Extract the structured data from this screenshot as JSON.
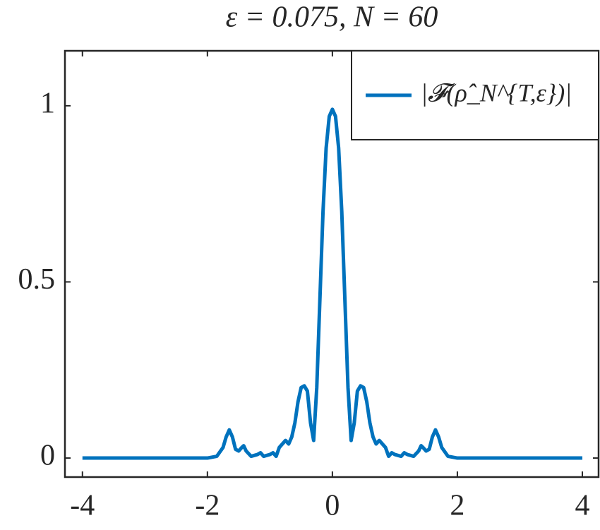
{
  "chart_data": {
    "type": "line",
    "title": "ε = 0.075, N = 60",
    "x": [
      -4,
      -2,
      -1.85,
      -1.75,
      -1.7,
      -1.65,
      -1.6,
      -1.55,
      -1.5,
      -1.45,
      -1.42,
      -1.38,
      -1.3,
      -1.2,
      -1.15,
      -1.1,
      -1.0,
      -0.95,
      -0.9,
      -0.85,
      -0.8,
      -0.75,
      -0.7,
      -0.65,
      -0.6,
      -0.55,
      -0.5,
      -0.45,
      -0.4,
      -0.35,
      -0.3,
      -0.25,
      -0.2,
      -0.15,
      -0.1,
      -0.05,
      0,
      0.05,
      0.1,
      0.15,
      0.2,
      0.25,
      0.3,
      0.35,
      0.4,
      0.45,
      0.5,
      0.55,
      0.6,
      0.65,
      0.7,
      0.75,
      0.8,
      0.85,
      0.9,
      0.95,
      1.0,
      1.1,
      1.15,
      1.2,
      1.3,
      1.38,
      1.42,
      1.45,
      1.5,
      1.55,
      1.6,
      1.65,
      1.7,
      1.75,
      1.85,
      2,
      4
    ],
    "series": [
      {
        "name": "|𝓕(ρ̂_N^{T,ε})|",
        "color": "#0072bd",
        "values": [
          0,
          0,
          0.005,
          0.03,
          0.06,
          0.08,
          0.06,
          0.025,
          0.02,
          0.03,
          0.035,
          0.02,
          0.005,
          0.01,
          0.015,
          0.005,
          0.01,
          0.015,
          0.005,
          0.03,
          0.04,
          0.05,
          0.04,
          0.06,
          0.1,
          0.16,
          0.2,
          0.205,
          0.19,
          0.1,
          0.05,
          0.2,
          0.45,
          0.7,
          0.88,
          0.97,
          0.99,
          0.97,
          0.88,
          0.7,
          0.45,
          0.2,
          0.05,
          0.1,
          0.19,
          0.205,
          0.2,
          0.16,
          0.1,
          0.06,
          0.04,
          0.05,
          0.04,
          0.03,
          0.005,
          0.015,
          0.01,
          0.005,
          0.015,
          0.01,
          0.005,
          0.02,
          0.035,
          0.03,
          0.02,
          0.025,
          0.06,
          0.08,
          0.06,
          0.03,
          0.005,
          0,
          0
        ]
      }
    ],
    "xlim": [
      -4.28,
      4.26
    ],
    "ylim": [
      -0.054,
      1.156
    ],
    "xticks": [
      -4,
      -2,
      0,
      2,
      4
    ],
    "yticks": [
      0,
      0.5,
      1
    ],
    "legend": "upper right"
  }
}
